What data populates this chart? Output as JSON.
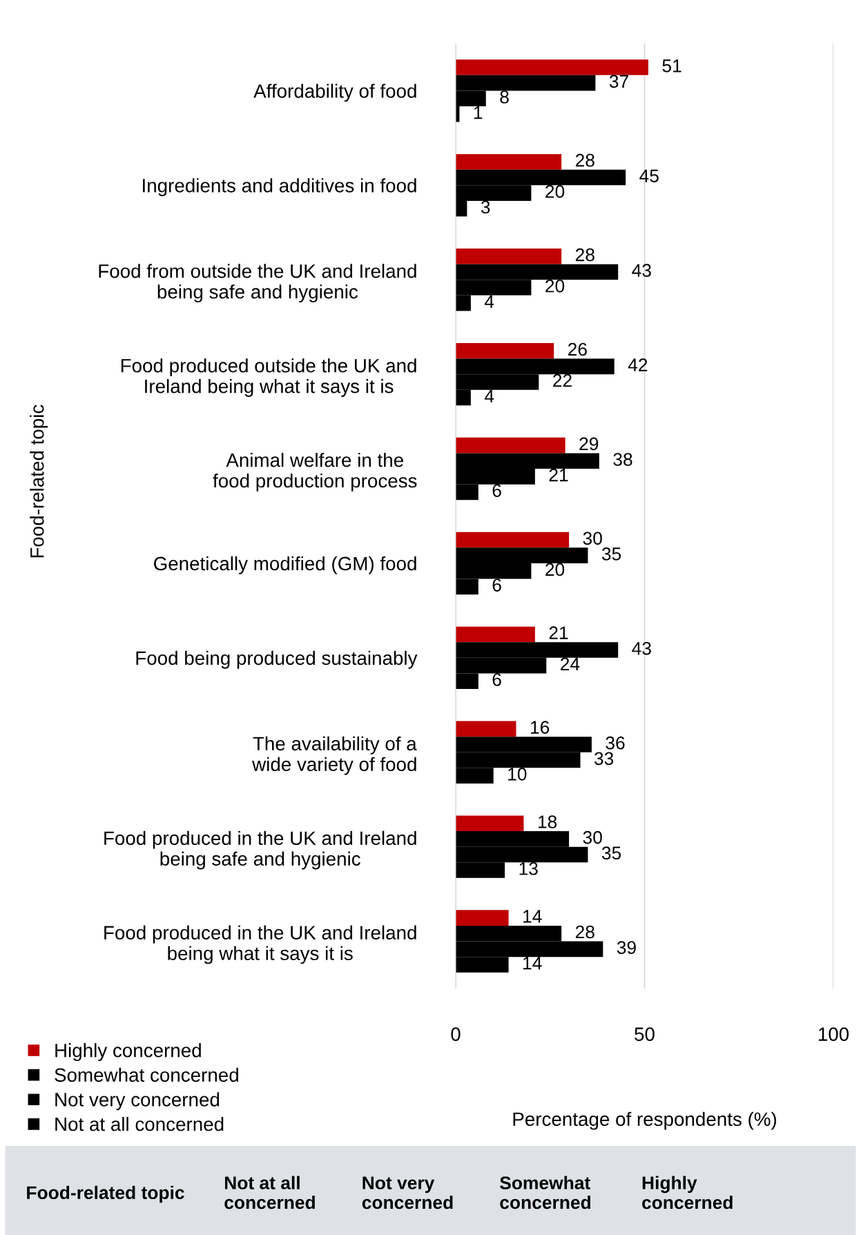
{
  "chart_data": {
    "type": "bar",
    "orientation": "horizontal",
    "ylabel": "Food-related topic",
    "xlabel": "Percentage of respondents (%)",
    "categories": [
      "Affordability of food",
      "Ingredients and additives in food",
      "Food from outside the UK and Ireland\nbeing safe and hygienic",
      "Food produced outside the UK and\nIreland being what it says it is",
      "Animal welfare in the\nfood production process",
      "Genetically modified (GM) food",
      "Food being produced sustainably",
      "The availability of a\nwide variety of food",
      "Food produced in the UK and Ireland\nbeing safe and hygienic",
      "Food produced in the UK and Ireland\nbeing what it says it is"
    ],
    "series": [
      {
        "name": "Highly concerned",
        "color": "#c00000",
        "values": [
          51,
          28,
          28,
          26,
          29,
          30,
          21,
          16,
          18,
          14
        ]
      },
      {
        "name": "Somewhat concerned",
        "color": "#000000",
        "values": [
          37,
          45,
          43,
          42,
          38,
          35,
          43,
          36,
          30,
          28
        ]
      },
      {
        "name": "Not very concerned",
        "color": "#000000",
        "values": [
          8,
          20,
          20,
          22,
          21,
          20,
          24,
          33,
          35,
          39
        ]
      },
      {
        "name": "Not at all concerned",
        "color": "#000000",
        "values": [
          1,
          3,
          4,
          4,
          6,
          6,
          6,
          10,
          13,
          14
        ]
      }
    ],
    "xlim": [
      0,
      100
    ],
    "xticks": [
      0,
      50,
      100
    ],
    "grid": "x",
    "legend": "bottom left",
    "data_labels": true,
    "annotations": [
      "Food-related topic",
      "Not at all\nconcerned",
      "Not very\nconcerned",
      "Somewhat\nconcerned",
      "Highly\nconcerned"
    ]
  }
}
